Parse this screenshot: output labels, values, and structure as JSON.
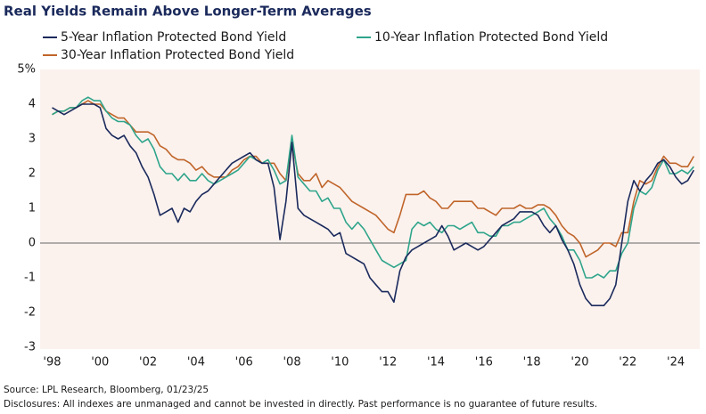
{
  "chart_data": {
    "type": "line",
    "title": "Real Yields Remain Above Longer-Term Averages",
    "x": [
      1998,
      1998.25,
      1998.5,
      1998.75,
      1999,
      1999.25,
      1999.5,
      1999.75,
      2000,
      2000.25,
      2000.5,
      2000.75,
      2001,
      2001.25,
      2001.5,
      2001.75,
      2002,
      2002.25,
      2002.5,
      2002.75,
      2003,
      2003.25,
      2003.5,
      2003.75,
      2004,
      2004.25,
      2004.5,
      2004.75,
      2005,
      2005.25,
      2005.5,
      2005.75,
      2006,
      2006.25,
      2006.5,
      2006.75,
      2007,
      2007.25,
      2007.5,
      2007.75,
      2008,
      2008.25,
      2008.5,
      2008.75,
      2009,
      2009.25,
      2009.5,
      2009.75,
      2010,
      2010.25,
      2010.5,
      2010.75,
      2011,
      2011.25,
      2011.5,
      2011.75,
      2012,
      2012.25,
      2012.5,
      2012.75,
      2013,
      2013.25,
      2013.5,
      2013.75,
      2014,
      2014.25,
      2014.5,
      2014.75,
      2015,
      2015.25,
      2015.5,
      2015.75,
      2016,
      2016.25,
      2016.5,
      2016.75,
      2017,
      2017.25,
      2017.5,
      2017.75,
      2018,
      2018.25,
      2018.5,
      2018.75,
      2019,
      2019.25,
      2019.5,
      2019.75,
      2020,
      2020.25,
      2020.5,
      2020.75,
      2021,
      2021.25,
      2021.5,
      2021.75,
      2022,
      2022.25,
      2022.5,
      2022.75,
      2023,
      2023.25,
      2023.5,
      2023.75,
      2024,
      2024.25,
      2024.5,
      2024.75
    ],
    "series": [
      {
        "name": "5-Year Inflation Protected Bond Yield",
        "color": "#1b2a5c",
        "values": [
          3.9,
          3.8,
          3.7,
          3.8,
          3.9,
          4.0,
          4.0,
          4.0,
          3.9,
          3.3,
          3.1,
          3.0,
          3.1,
          2.8,
          2.6,
          2.2,
          1.9,
          1.4,
          0.8,
          0.9,
          1.0,
          0.6,
          1.0,
          0.9,
          1.2,
          1.4,
          1.5,
          1.7,
          1.9,
          2.1,
          2.3,
          2.4,
          2.5,
          2.6,
          2.4,
          2.3,
          2.3,
          1.6,
          0.1,
          1.2,
          2.9,
          1.0,
          0.8,
          0.7,
          0.6,
          0.5,
          0.4,
          0.2,
          0.3,
          -0.3,
          -0.4,
          -0.5,
          -0.6,
          -1.0,
          -1.2,
          -1.4,
          -1.4,
          -1.7,
          -0.8,
          -0.4,
          -0.2,
          -0.1,
          0.0,
          0.1,
          0.2,
          0.5,
          0.2,
          -0.2,
          -0.1,
          0.0,
          -0.1,
          -0.2,
          -0.1,
          0.1,
          0.3,
          0.5,
          0.6,
          0.7,
          0.9,
          0.9,
          0.9,
          0.8,
          0.5,
          0.3,
          0.5,
          0.1,
          -0.2,
          -0.6,
          -1.2,
          -1.6,
          -1.8,
          -1.8,
          -1.8,
          -1.6,
          -1.2,
          0.0,
          1.2,
          1.8,
          1.5,
          1.8,
          2.0,
          2.3,
          2.4,
          2.2,
          1.9,
          1.7,
          1.8,
          2.1
        ]
      },
      {
        "name": "10-Year Inflation Protected Bond Yield",
        "color": "#2fa58b",
        "values": [
          3.7,
          3.8,
          3.8,
          3.9,
          3.9,
          4.1,
          4.2,
          4.1,
          4.1,
          3.8,
          3.6,
          3.5,
          3.5,
          3.4,
          3.1,
          2.9,
          3.0,
          2.7,
          2.2,
          2.0,
          2.0,
          1.8,
          2.0,
          1.8,
          1.8,
          2.0,
          1.8,
          1.7,
          1.8,
          1.9,
          2.0,
          2.1,
          2.3,
          2.5,
          2.4,
          2.3,
          2.4,
          2.1,
          1.7,
          1.8,
          3.1,
          1.9,
          1.7,
          1.5,
          1.5,
          1.2,
          1.3,
          1.0,
          1.0,
          0.6,
          0.4,
          0.6,
          0.4,
          0.1,
          -0.2,
          -0.5,
          -0.6,
          -0.7,
          -0.6,
          -0.5,
          0.4,
          0.6,
          0.5,
          0.6,
          0.4,
          0.3,
          0.5,
          0.5,
          0.4,
          0.5,
          0.6,
          0.3,
          0.3,
          0.2,
          0.2,
          0.5,
          0.5,
          0.6,
          0.6,
          0.7,
          0.8,
          0.9,
          1.0,
          0.7,
          0.5,
          0.2,
          -0.2,
          -0.2,
          -0.5,
          -1.0,
          -1.0,
          -0.9,
          -1.0,
          -0.8,
          -0.8,
          -0.3,
          0.0,
          1.0,
          1.5,
          1.4,
          1.6,
          2.1,
          2.4,
          2.0,
          2.0,
          2.1,
          2.0,
          2.2
        ]
      },
      {
        "name": "30-Year Inflation Protected Bond Yield",
        "color": "#c0652a",
        "values": [
          3.7,
          3.8,
          3.8,
          3.9,
          3.9,
          4.0,
          4.1,
          4.0,
          4.0,
          3.8,
          3.7,
          3.6,
          3.6,
          3.4,
          3.2,
          3.2,
          3.2,
          3.1,
          2.8,
          2.7,
          2.5,
          2.4,
          2.4,
          2.3,
          2.1,
          2.2,
          2.0,
          1.9,
          1.9,
          1.9,
          2.1,
          2.2,
          2.4,
          2.5,
          2.5,
          2.3,
          2.3,
          2.3,
          2.0,
          1.8,
          2.9,
          2.0,
          1.8,
          1.8,
          2.0,
          1.6,
          1.8,
          1.7,
          1.6,
          1.4,
          1.2,
          1.1,
          1.0,
          0.9,
          0.8,
          0.6,
          0.4,
          0.3,
          0.8,
          1.4,
          1.4,
          1.4,
          1.5,
          1.3,
          1.2,
          1.0,
          1.0,
          1.2,
          1.2,
          1.2,
          1.2,
          1.0,
          1.0,
          0.9,
          0.8,
          1.0,
          1.0,
          1.0,
          1.1,
          1.0,
          1.0,
          1.1,
          1.1,
          1.0,
          0.8,
          0.5,
          0.3,
          0.2,
          0.0,
          -0.4,
          -0.3,
          -0.2,
          0.0,
          0.0,
          -0.1,
          0.3,
          0.3,
          1.2,
          1.8,
          1.7,
          1.8,
          2.2,
          2.5,
          2.3,
          2.3,
          2.2,
          2.2,
          2.5
        ]
      }
    ],
    "xlim": [
      1997.5,
      2025
    ],
    "xticks": [
      {
        "value": 1998,
        "label": "'98"
      },
      {
        "value": 2000,
        "label": "'00"
      },
      {
        "value": 2002,
        "label": "'02"
      },
      {
        "value": 2004,
        "label": "'04"
      },
      {
        "value": 2006,
        "label": "'06"
      },
      {
        "value": 2008,
        "label": "'08"
      },
      {
        "value": 2010,
        "label": "'10"
      },
      {
        "value": 2012,
        "label": "'12"
      },
      {
        "value": 2014,
        "label": "'14"
      },
      {
        "value": 2016,
        "label": "'16"
      },
      {
        "value": 2018,
        "label": "'18"
      },
      {
        "value": 2020,
        "label": "'20"
      },
      {
        "value": 2022,
        "label": "'22"
      },
      {
        "value": 2024,
        "label": "'24"
      }
    ],
    "ylim": [
      -3,
      5
    ],
    "yticks": [
      -3,
      -2,
      -1,
      0,
      1,
      2,
      3,
      4,
      {
        "value": 5,
        "label": "5%"
      }
    ],
    "source": "Source: LPL Research, Bloomberg, 01/23/25",
    "disclosure": "Disclosures: All indexes are unmanaged and cannot be invested in directly. Past performance is no guarantee of future results."
  }
}
